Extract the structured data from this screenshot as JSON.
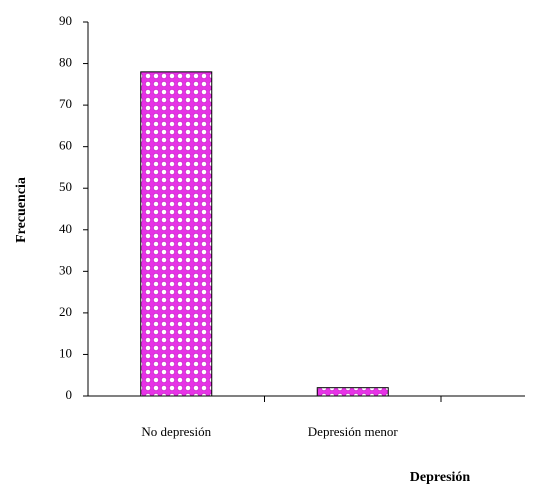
{
  "chart_data": {
    "type": "bar",
    "x_label": "Depresión",
    "y_label": "Frecuencia",
    "categories": [
      "No depresión",
      "Depresión menor"
    ],
    "values": [
      78,
      2
    ],
    "color": "#e633e6",
    "ylim": [
      0,
      90
    ],
    "yticks": [
      0,
      10,
      20,
      30,
      40,
      50,
      60,
      70,
      80,
      90
    ]
  }
}
